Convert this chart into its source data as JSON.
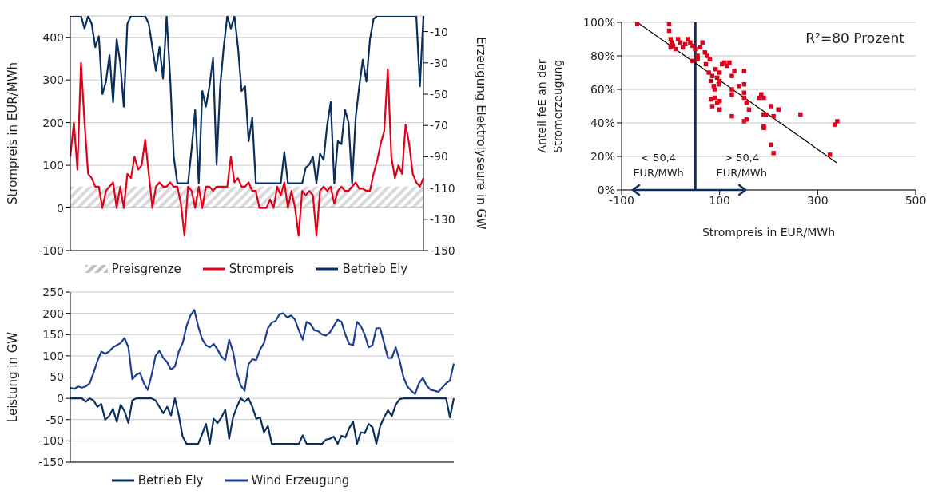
{
  "chart_data": [
    {
      "type": "line",
      "ylabel": "Strompreis in EUR/MWh",
      "y2label": "Erzeugung Elektrolyseure in GW",
      "categories": [
        null,
        null,
        null,
        null,
        null,
        null,
        null,
        null,
        null,
        null,
        null,
        null,
        null,
        null,
        null,
        null,
        null,
        null,
        null,
        null,
        null,
        null,
        null,
        null,
        null,
        null,
        null,
        null,
        null,
        null,
        null,
        null,
        null,
        null,
        null,
        null,
        null,
        null,
        null,
        null,
        null,
        null,
        null,
        null,
        null,
        null,
        null,
        null,
        null,
        null,
        null,
        null,
        null,
        null,
        null,
        null,
        null,
        null,
        null,
        null,
        null,
        null,
        null,
        null,
        null,
        null,
        null,
        null,
        null,
        null,
        null,
        null,
        null,
        null,
        null,
        null,
        null,
        null,
        null,
        null,
        null,
        null,
        null,
        null,
        null,
        null,
        null,
        null,
        null,
        null,
        null,
        null,
        null,
        null,
        null,
        null,
        null,
        null,
        null,
        null
      ],
      "series": [
        {
          "name": "Preisgrenze",
          "type": "area",
          "color": "#bfbfbf",
          "values": [
            50,
            50,
            50,
            50,
            50,
            50,
            50,
            50,
            50,
            50,
            50,
            50,
            50,
            50,
            50,
            50,
            50,
            50,
            50,
            50,
            50,
            50,
            50,
            50,
            50,
            50,
            50,
            50,
            50,
            50,
            50,
            50,
            50,
            50,
            50,
            50,
            50,
            50,
            50,
            50,
            50,
            50,
            50,
            50,
            50,
            50,
            50,
            50,
            50,
            50,
            50,
            50,
            50,
            50,
            50,
            50,
            50,
            50,
            50,
            50,
            50,
            50,
            50,
            50,
            50,
            50,
            50,
            50,
            50,
            50,
            50,
            50,
            50,
            50,
            50,
            50,
            50,
            50,
            50,
            50,
            50,
            50,
            50,
            50,
            50,
            50,
            50,
            50,
            50,
            50,
            50,
            50,
            50,
            50,
            50,
            50,
            50,
            50,
            50,
            50
          ]
        },
        {
          "name": "Strompreis",
          "color": "#e2001a",
          "values": [
            120,
            200,
            90,
            340,
            200,
            80,
            70,
            50,
            50,
            0,
            40,
            50,
            60,
            0,
            50,
            0,
            80,
            70,
            120,
            90,
            100,
            160,
            80,
            0,
            50,
            60,
            50,
            50,
            60,
            50,
            50,
            10,
            -65,
            50,
            40,
            0,
            50,
            0,
            50,
            50,
            40,
            50,
            50,
            50,
            50,
            120,
            60,
            70,
            50,
            50,
            60,
            40,
            40,
            0,
            0,
            0,
            20,
            0,
            50,
            30,
            60,
            0,
            40,
            0,
            -65,
            40,
            30,
            40,
            30,
            -65,
            40,
            50,
            40,
            50,
            10,
            40,
            50,
            40,
            40,
            50,
            60,
            45,
            45,
            40,
            40,
            80,
            110,
            150,
            180,
            325,
            120,
            70,
            100,
            80,
            195,
            150,
            80,
            60,
            50,
            70
          ]
        },
        {
          "name": "Betrieb Ely",
          "color": "#0a2f5c",
          "axis": "y2",
          "values": [
            0,
            0,
            0,
            0,
            -8,
            0,
            -5,
            -20,
            -13,
            -50,
            -42,
            -25,
            -55,
            -15,
            -30,
            -58,
            -5,
            0,
            0,
            0,
            0,
            0,
            -5,
            -20,
            -35,
            -20,
            -40,
            0,
            -40,
            -90,
            -107,
            -107,
            -107,
            -107,
            -85,
            -60,
            -107,
            -48,
            -58,
            -45,
            -27,
            -95,
            -45,
            -20,
            0,
            -8,
            0,
            -20,
            -48,
            -45,
            -80,
            -65,
            -107,
            -107,
            -107,
            -107,
            -107,
            -107,
            -107,
            -107,
            -87,
            -107,
            -107,
            -107,
            -107,
            -107,
            -97,
            -95,
            -90,
            -107,
            -88,
            -92,
            -70,
            -55,
            -107,
            -80,
            -82,
            -60,
            -68,
            -107,
            -65,
            -45,
            -28,
            -42,
            -15,
            -2,
            0,
            0,
            0,
            0,
            0,
            0,
            0,
            0,
            0,
            0,
            0,
            0,
            -45,
            0
          ]
        }
      ],
      "ylim": [
        -100,
        450
      ],
      "yticks": [
        -100,
        0,
        100,
        200,
        300,
        400
      ],
      "y2lim": [
        -150,
        0
      ],
      "y2ticks": [
        -150,
        -130,
        -110,
        -90,
        -70,
        -50,
        -30,
        -10
      ],
      "grid": "y",
      "legend": "bottom"
    },
    {
      "type": "scatter",
      "xlabel": "Strompreis in EUR/MWh",
      "ylabel": "Anteil feE an der Stromerzeugung",
      "annotations": [
        "R²=80 Prozent",
        "< 50,4 EUR/MWh",
        "> 50,4 EUR/MWh"
      ],
      "marker": "square",
      "series": [
        {
          "color": "#e2001a",
          "x": [
            -68,
            -3,
            -3,
            0,
            0,
            2,
            5,
            10,
            15,
            20,
            25,
            30,
            35,
            40,
            45,
            50,
            55,
            45,
            55,
            60,
            65,
            70,
            72,
            75,
            78,
            80,
            82,
            85,
            88,
            90,
            92,
            95,
            98,
            100,
            100,
            105,
            110,
            115,
            120,
            90,
            95,
            100,
            100,
            85,
            82,
            125,
            130,
            125,
            125,
            140,
            150,
            150,
            150,
            150,
            155,
            155,
            150,
            160,
            125,
            185,
            190,
            180,
            190,
            195,
            190,
            190,
            205,
            210,
            220,
            205,
            210,
            265,
            325,
            335,
            340
          ],
          "values": [
            99,
            99,
            95,
            90,
            85,
            88,
            86,
            84,
            90,
            88,
            85,
            87,
            90,
            88,
            86,
            84,
            80,
            77,
            78,
            85,
            88,
            82,
            75,
            80,
            70,
            78,
            65,
            68,
            62,
            60,
            72,
            67,
            63,
            65,
            70,
            75,
            76,
            74,
            76,
            55,
            52,
            53,
            48,
            50,
            54,
            68,
            71,
            60,
            57,
            62,
            71,
            63,
            58,
            55,
            52,
            42,
            41,
            48,
            44,
            57,
            55,
            55,
            45,
            45,
            38,
            37,
            50,
            44,
            48,
            27,
            22,
            45,
            21,
            39,
            41
          ]
        },
        {
          "type": "line",
          "color": "#000000",
          "marker": "none",
          "x": [
            -68,
            340
          ],
          "values": [
            100,
            16
          ]
        }
      ],
      "ref_lines": [
        {
          "axis": "x",
          "value": 50.4,
          "color": "#0a2f5c"
        }
      ],
      "xlim": [
        -100,
        500
      ],
      "xticks": [
        -100,
        100,
        300,
        500
      ],
      "ylim": [
        0,
        100
      ],
      "yticks": [
        {
          "value": 0,
          "label": "0%"
        },
        {
          "value": 20,
          "label": "20%"
        },
        {
          "value": 40,
          "label": "40%"
        },
        {
          "value": 60,
          "label": "60%"
        },
        {
          "value": 80,
          "label": "80%"
        },
        {
          "value": 100,
          "label": "100%"
        }
      ],
      "grid": "y"
    },
    {
      "type": "line",
      "ylabel": "Leistung in GW",
      "categories": [
        null,
        null,
        null,
        null,
        null,
        null,
        null,
        null,
        null,
        null,
        null,
        null,
        null,
        null,
        null,
        null,
        null,
        null,
        null,
        null,
        null,
        null,
        null,
        null,
        null,
        null,
        null,
        null,
        null,
        null,
        null,
        null,
        null,
        null,
        null,
        null,
        null,
        null,
        null,
        null,
        null,
        null,
        null,
        null,
        null,
        null,
        null,
        null,
        null,
        null,
        null,
        null,
        null,
        null,
        null,
        null,
        null,
        null,
        null,
        null,
        null,
        null,
        null,
        null,
        null,
        null,
        null,
        null,
        null,
        null,
        null,
        null,
        null,
        null,
        null,
        null,
        null,
        null,
        null,
        null,
        null,
        null,
        null,
        null,
        null,
        null,
        null,
        null,
        null,
        null,
        null,
        null,
        null,
        null,
        null,
        null,
        null,
        null,
        null,
        null
      ],
      "series": [
        {
          "name": "Betrieb Ely",
          "color": "#0a2f5c",
          "values": [
            0,
            0,
            0,
            0,
            -8,
            0,
            -5,
            -20,
            -13,
            -50,
            -42,
            -25,
            -55,
            -15,
            -30,
            -58,
            -5,
            0,
            0,
            0,
            0,
            0,
            -5,
            -20,
            -35,
            -20,
            -40,
            0,
            -40,
            -90,
            -107,
            -107,
            -107,
            -107,
            -85,
            -60,
            -107,
            -48,
            -58,
            -45,
            -27,
            -95,
            -45,
            -20,
            0,
            -8,
            0,
            -20,
            -48,
            -45,
            -80,
            -65,
            -107,
            -107,
            -107,
            -107,
            -107,
            -107,
            -107,
            -107,
            -87,
            -107,
            -107,
            -107,
            -107,
            -107,
            -97,
            -95,
            -90,
            -107,
            -88,
            -92,
            -70,
            -55,
            -107,
            -80,
            -82,
            -60,
            -68,
            -107,
            -65,
            -45,
            -28,
            -42,
            -15,
            -2,
            0,
            0,
            0,
            0,
            0,
            0,
            0,
            0,
            0,
            0,
            0,
            0,
            -45,
            0
          ]
        },
        {
          "name": "Wind Erzeugung",
          "color": "#1c3f94",
          "values": [
            25,
            22,
            28,
            25,
            28,
            35,
            60,
            88,
            110,
            105,
            110,
            120,
            125,
            130,
            142,
            120,
            45,
            55,
            60,
            35,
            20,
            55,
            100,
            112,
            95,
            85,
            68,
            75,
            110,
            130,
            170,
            195,
            208,
            170,
            140,
            125,
            120,
            128,
            115,
            98,
            90,
            138,
            110,
            60,
            30,
            18,
            80,
            92,
            90,
            115,
            130,
            165,
            178,
            182,
            198,
            200,
            190,
            195,
            185,
            160,
            138,
            180,
            175,
            160,
            158,
            150,
            148,
            155,
            170,
            185,
            180,
            150,
            128,
            125,
            180,
            170,
            150,
            120,
            125,
            165,
            165,
            130,
            95,
            95,
            120,
            90,
            50,
            28,
            18,
            10,
            35,
            48,
            30,
            20,
            18,
            15,
            25,
            35,
            42,
            82
          ]
        }
      ],
      "ylim": [
        -150,
        250
      ],
      "yticks": [
        -150,
        -100,
        -50,
        0,
        50,
        100,
        150,
        200,
        250
      ],
      "grid": "y",
      "legend": "bottom"
    }
  ]
}
